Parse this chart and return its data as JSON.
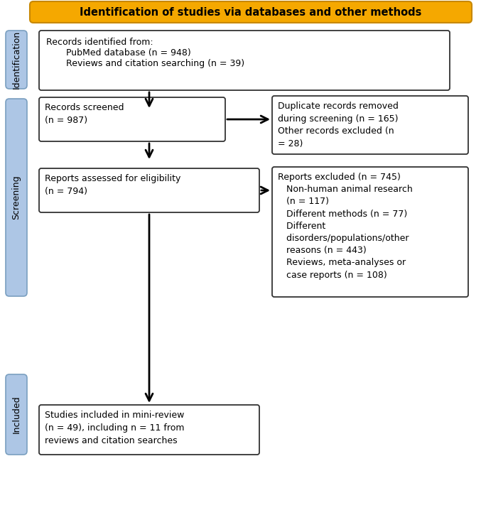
{
  "title": "Identification of studies via databases and other methods",
  "title_bg": "#F5A800",
  "title_color": "#000000",
  "title_fontsize": 10.5,
  "sidebar_color": "#ADC6E5",
  "box_fill": "#FFFFFF",
  "box_edge": "#333333",
  "box1_line1": "Records identified from:",
  "box1_line2": "       PubMed database (n = 948)",
  "box1_line3": "       Reviews and citation searching (n = 39)",
  "box2_text": "Records screened\n(n = 987)",
  "box3_text": "Duplicate records removed\nduring screening (n = 165)\nOther records excluded (n\n= 28)",
  "box4_text": "Reports assessed for eligibility\n(n = 794)",
  "box5_text": "Reports excluded (n = 745)\n   Non-human animal research\n   (n = 117)\n   Different methods (n = 77)\n   Different\n   disorders/populations/other\n   reasons (n = 443)\n   Reviews, meta-analyses or\n   case reports (n = 108)",
  "box6_text": "Studies included in mini-review\n(n = 49), including n = 11 from\nreviews and citation searches",
  "label_identification": "Identification",
  "label_screening": "Screening",
  "label_included": "Included",
  "fontsize": 9.0
}
